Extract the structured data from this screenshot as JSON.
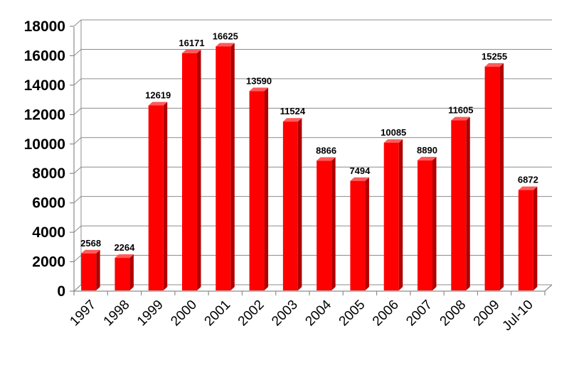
{
  "chart_data": {
    "type": "bar",
    "title": "",
    "xlabel": "",
    "ylabel": "",
    "categories": [
      "1997",
      "1998",
      "1999",
      "2000",
      "2001",
      "2002",
      "2003",
      "2004",
      "2005",
      "2006",
      "2007",
      "2008",
      "2009",
      "Jul-10"
    ],
    "values": [
      2568,
      2264,
      12619,
      16171,
      16625,
      13590,
      11524,
      8866,
      7494,
      10085,
      8890,
      11605,
      15255,
      6872
    ],
    "data_labels": [
      "2568",
      "2264",
      "12619",
      "16171",
      "16625",
      "13590",
      "11524",
      "8866",
      "7494",
      "10085",
      "8890",
      "11605",
      "15255",
      "6872"
    ],
    "ylim": [
      0,
      18000
    ],
    "yticks": [
      0,
      2000,
      4000,
      6000,
      8000,
      10000,
      12000,
      14000,
      16000,
      18000
    ],
    "ytick_labels": [
      "0",
      "2000",
      "4000",
      "6000",
      "8000",
      "10000",
      "12000",
      "14000",
      "16000",
      "18000"
    ],
    "grid": true,
    "legend": "none",
    "style": "3d-bars",
    "colors": {
      "bar_front": "#ff0000",
      "bar_side": "#b00000",
      "bar_top": "#ff5a5a",
      "gridline": "#8c8c8c",
      "wall": "#ffffff"
    }
  }
}
